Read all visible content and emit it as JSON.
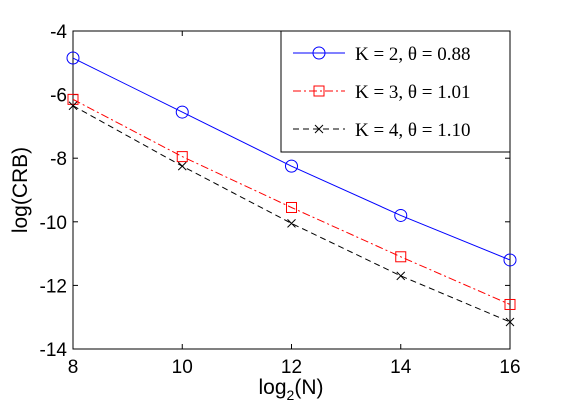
{
  "chart_data": {
    "type": "line",
    "title": "",
    "xlabel": "log",
    "xlabel_sub": "2",
    "xlabel_tail": "(N)",
    "ylabel": "log(CRB)",
    "xlim": [
      8,
      16
    ],
    "ylim": [
      -14,
      -4
    ],
    "xticks": [
      8,
      10,
      12,
      14,
      16
    ],
    "yticks": [
      -14,
      -12,
      -10,
      -8,
      -6,
      -4
    ],
    "grid": false,
    "legend_position": "top-right",
    "x": [
      8,
      10,
      12,
      14,
      16
    ],
    "series": [
      {
        "name": "K = 2, θ = 0.88",
        "values": [
          -4.85,
          -6.55,
          -8.25,
          -9.8,
          -11.2
        ],
        "color": "#0000ff",
        "marker": "circle",
        "dash": "solid"
      },
      {
        "name": "K = 3, θ = 1.01",
        "values": [
          -6.15,
          -7.95,
          -9.55,
          -11.1,
          -12.6
        ],
        "color": "#ff0000",
        "marker": "square",
        "dash": "dashdot"
      },
      {
        "name": "K = 4, θ = 1.10",
        "values": [
          -6.35,
          -8.25,
          -10.05,
          -11.7,
          -13.15
        ],
        "color": "#000000",
        "marker": "x",
        "dash": "dashed"
      }
    ]
  }
}
